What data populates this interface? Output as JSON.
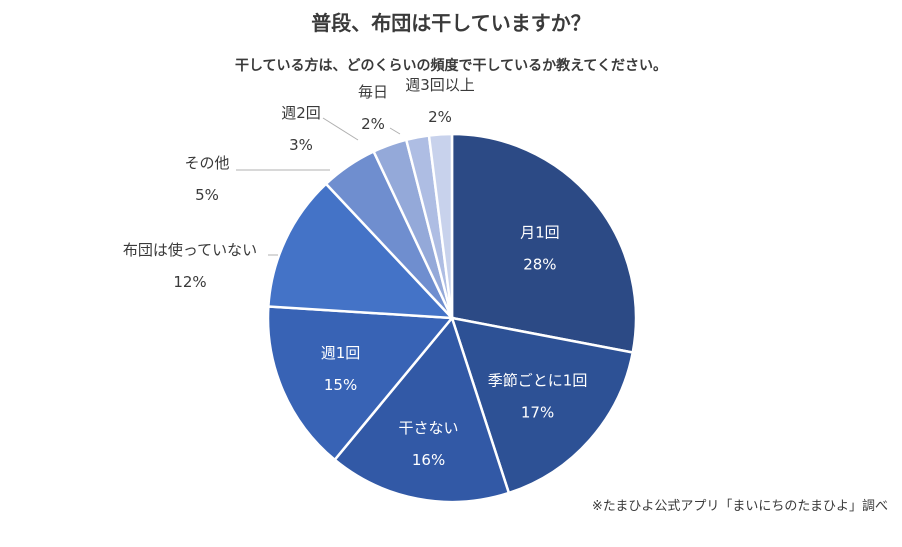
{
  "chart_data": {
    "type": "pie",
    "title": "普段、布団は干していますか？",
    "subtitle": "干している方は、どのくらいの頻度で干しているか教えてください。",
    "source": "※たまひよ公式アプリ「まいにちのたまひよ」調べ",
    "slices": [
      {
        "label": "月1回",
        "value": 28,
        "value_text": "28%",
        "color": "#2c4a85"
      },
      {
        "label": "季節ごとに1回",
        "value": 17,
        "value_text": "17%",
        "color": "#2d5195"
      },
      {
        "label": "干さない",
        "value": 16,
        "value_text": "16%",
        "color": "#3259a6"
      },
      {
        "label": "週1回",
        "value": 15,
        "value_text": "15%",
        "color": "#3863b5"
      },
      {
        "label": "布団は使っていない",
        "value": 12,
        "value_text": "12%",
        "color": "#4473c7"
      },
      {
        "label": "その他",
        "value": 5,
        "value_text": "5%",
        "color": "#6f8ecf"
      },
      {
        "label": "週2回",
        "value": 3,
        "value_text": "3%",
        "color": "#94a9d9"
      },
      {
        "label": "毎日",
        "value": 2,
        "value_text": "2%",
        "color": "#aebde3"
      },
      {
        "label": "週3回以上",
        "value": 2,
        "value_text": "2%",
        "color": "#c8d2ec"
      }
    ]
  }
}
